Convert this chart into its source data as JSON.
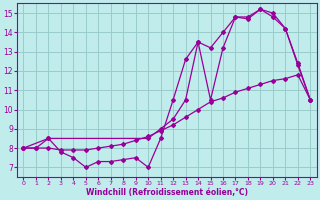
{
  "xlabel": "Windchill (Refroidissement éolien,°C)",
  "bg_color": "#c0ecec",
  "line_color": "#990099",
  "grid_color": "#99cccc",
  "xlim": [
    -0.5,
    23.5
  ],
  "ylim": [
    6.5,
    15.5
  ],
  "xticks": [
    0,
    1,
    2,
    3,
    4,
    5,
    6,
    7,
    8,
    9,
    10,
    11,
    12,
    13,
    14,
    15,
    16,
    17,
    18,
    19,
    20,
    21,
    22,
    23
  ],
  "yticks": [
    7,
    8,
    9,
    10,
    11,
    12,
    13,
    14,
    15
  ],
  "series1_x": [
    0,
    1,
    2,
    3,
    4,
    5,
    6,
    7,
    8,
    9,
    10,
    11,
    12,
    13,
    14,
    15,
    16,
    17,
    18,
    19,
    20,
    21,
    22,
    23
  ],
  "series1_y": [
    8.0,
    8.0,
    8.5,
    7.8,
    7.5,
    7.0,
    7.3,
    7.3,
    7.4,
    7.5,
    7.0,
    8.5,
    10.5,
    12.6,
    13.5,
    10.5,
    13.2,
    14.8,
    14.7,
    15.2,
    15.0,
    14.2,
    12.3,
    10.5
  ],
  "series2_x": [
    0,
    2,
    10,
    11,
    12,
    13,
    14,
    15,
    16,
    17,
    18,
    19,
    20,
    21,
    22,
    23
  ],
  "series2_y": [
    8.0,
    8.5,
    8.5,
    9.0,
    9.5,
    10.5,
    13.5,
    13.2,
    14.0,
    14.8,
    14.8,
    15.2,
    14.8,
    14.2,
    12.4,
    10.5
  ],
  "series3_x": [
    0,
    1,
    2,
    3,
    4,
    5,
    6,
    7,
    8,
    9,
    10,
    11,
    12,
    13,
    14,
    15,
    16,
    17,
    18,
    19,
    20,
    21,
    22,
    23
  ],
  "series3_y": [
    8.0,
    8.0,
    8.0,
    7.9,
    7.9,
    7.9,
    8.0,
    8.1,
    8.2,
    8.4,
    8.6,
    8.9,
    9.2,
    9.6,
    10.0,
    10.4,
    10.6,
    10.9,
    11.1,
    11.3,
    11.5,
    11.6,
    11.8,
    10.5
  ]
}
